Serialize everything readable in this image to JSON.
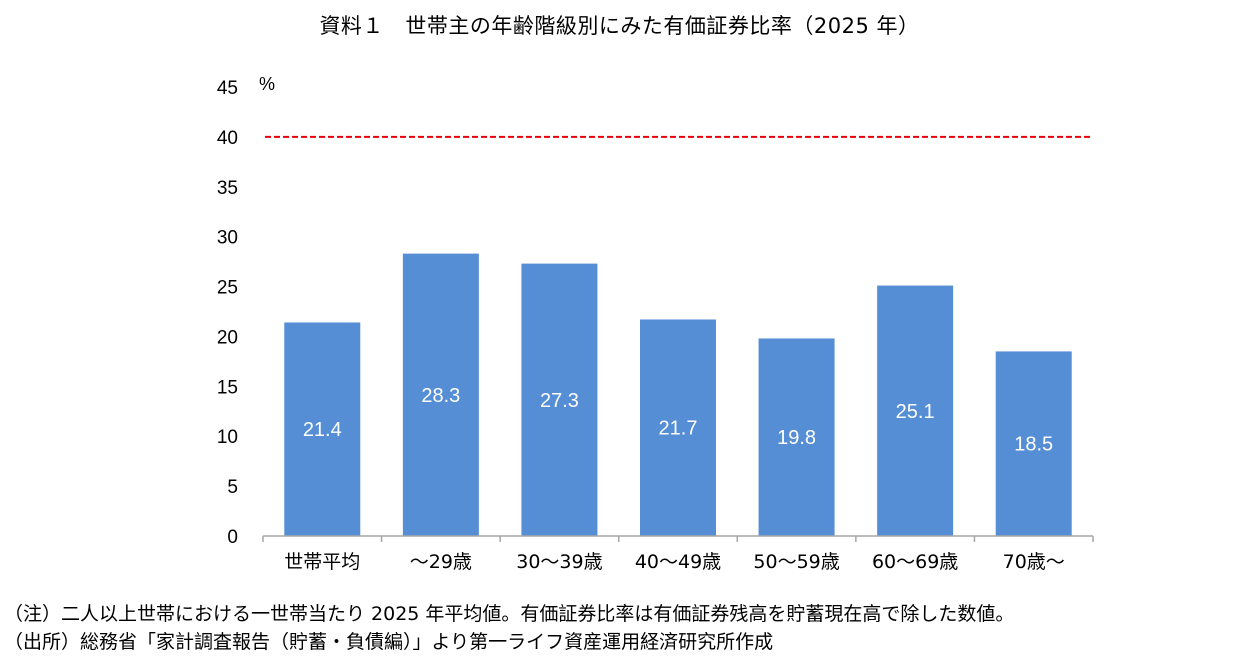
{
  "title": "資料１　世帯主の年齢階級別にみた有価証券比率（2025 年）",
  "chart_data": {
    "type": "bar",
    "title": "資料１　世帯主の年齢階級別にみた有価証券比率（2025 年）",
    "categories": [
      "世帯平均",
      "～29歳",
      "30～39歳",
      "40～49歳",
      "50～59歳",
      "60～69歳",
      "70歳～"
    ],
    "values": [
      21.4,
      28.3,
      27.3,
      21.7,
      19.8,
      25.1,
      18.5
    ],
    "data_labels": [
      "21.4",
      "28.3",
      "27.3",
      "21.7",
      "19.8",
      "25.1",
      "18.5"
    ],
    "ylabel": "%",
    "ylim": [
      0,
      45
    ],
    "yticks": [
      0,
      5,
      10,
      15,
      20,
      25,
      30,
      35,
      40,
      45
    ],
    "ytick_labels": [
      "0",
      "5",
      "10",
      "15",
      "20",
      "25",
      "30",
      "35",
      "40",
      "45"
    ],
    "reference_line": {
      "value": 40,
      "style": "dashed",
      "color": "#e8000b"
    },
    "bar_color": "#558ed5",
    "label_color": "#ffffff",
    "grid": false,
    "legend": "none"
  },
  "notes": [
    "（注）二人以上世帯における一世帯当たり 2025 年平均値。有価証券比率は有価証券残高を貯蓄現在高で除した数値。",
    "（出所）総務省「家計調査報告（貯蓄・負債編）」より第一ライフ資産運用経済研究所作成"
  ]
}
